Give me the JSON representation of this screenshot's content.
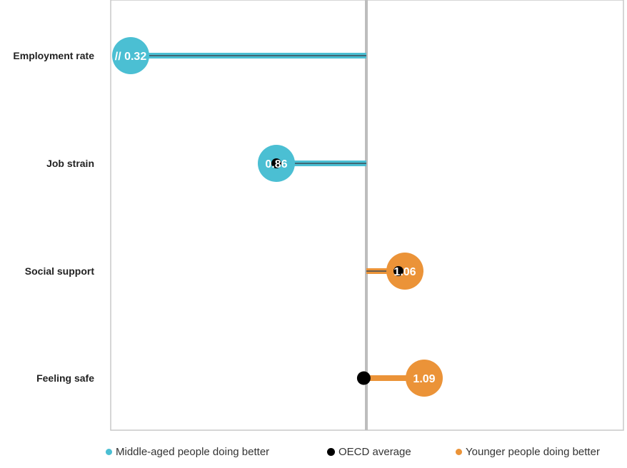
{
  "chart_data": {
    "type": "dot",
    "reference_value": 1.0,
    "categories": [
      "Employment rate",
      "Job strain",
      "Social support",
      "Feeling safe"
    ],
    "series": [
      {
        "name": "Middle-aged people doing better",
        "color": "#4bbfd3"
      },
      {
        "name": "OECD average",
        "color": "#000000"
      },
      {
        "name": "Younger people doing better",
        "color": "#eb9338"
      }
    ],
    "points": [
      {
        "category": "Employment rate",
        "value": 0.32,
        "label": "// 0.32",
        "group": "Middle-aged people doing better",
        "oecd_average": null,
        "axis_break": true
      },
      {
        "category": "Job strain",
        "value": 0.86,
        "label": "0.86",
        "group": "Middle-aged people doing better",
        "oecd_average": 0.86
      },
      {
        "category": "Social support",
        "value": 1.06,
        "label": "1.06",
        "group": "Younger people doing better",
        "oecd_average": 1.05
      },
      {
        "category": "Feeling safe",
        "value": 1.09,
        "label": "1.09",
        "group": "Younger people doing better",
        "oecd_average": 0.996
      }
    ],
    "xlim": [
      0.5,
      1.4
    ],
    "grid": false,
    "legend_position": "bottom"
  }
}
